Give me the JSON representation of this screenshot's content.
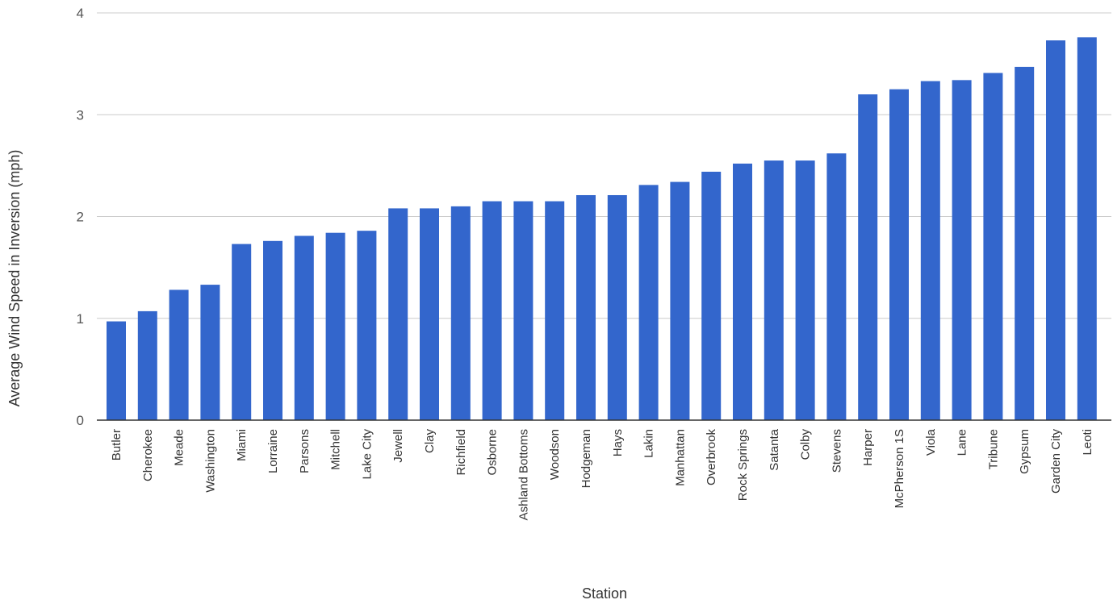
{
  "chart_data": {
    "type": "bar",
    "title": "",
    "xlabel": "Station",
    "ylabel": "Average Wind Speed in Inversion (mph)",
    "ylim": [
      0,
      4
    ],
    "yticks": [
      0,
      1,
      2,
      3,
      4
    ],
    "grid": true,
    "legend": "none",
    "bar_color": "#3366cc",
    "categories": [
      "Butler",
      "Cherokee",
      "Meade",
      "Washington",
      "Miami",
      "Lorraine",
      "Parsons",
      "Mitchell",
      "Lake City",
      "Jewell",
      "Clay",
      "Richfield",
      "Osborne",
      "Ashland Bottoms",
      "Woodson",
      "Hodgeman",
      "Hays",
      "Lakin",
      "Manhattan",
      "Overbrook",
      "Rock Springs",
      "Satanta",
      "Colby",
      "Stevens",
      "Harper",
      "McPherson 1S",
      "Viola",
      "Lane",
      "Tribune",
      "Gypsum",
      "Garden City",
      "Leoti"
    ],
    "values": [
      0.97,
      1.07,
      1.28,
      1.33,
      1.73,
      1.76,
      1.81,
      1.84,
      1.86,
      2.08,
      2.08,
      2.1,
      2.15,
      2.15,
      2.15,
      2.21,
      2.21,
      2.31,
      2.34,
      2.44,
      2.52,
      2.55,
      2.55,
      2.62,
      3.2,
      3.25,
      3.33,
      3.34,
      3.41,
      3.47,
      3.73,
      3.76
    ]
  }
}
